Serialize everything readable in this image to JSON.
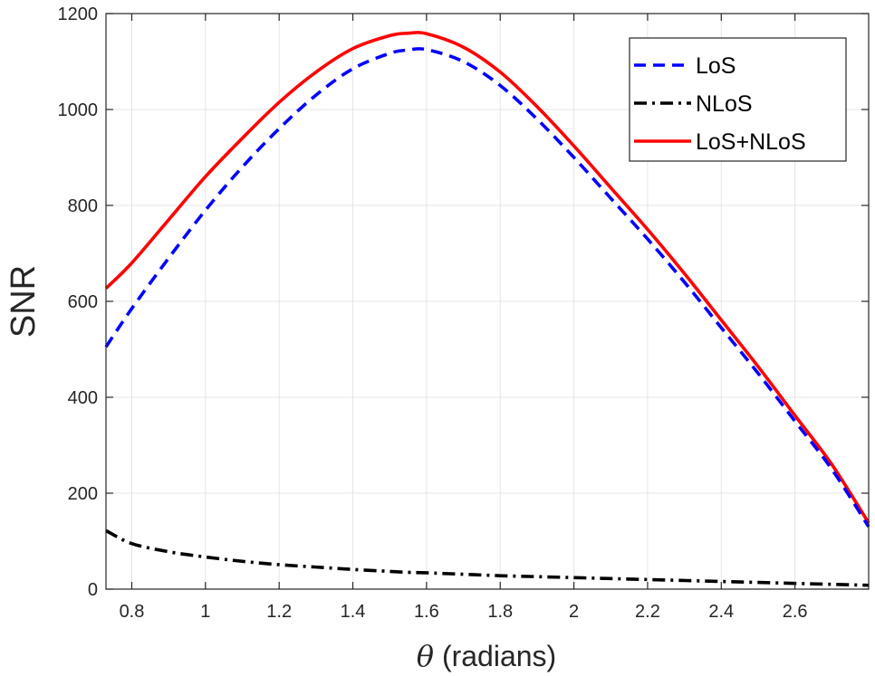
{
  "chart_data": {
    "type": "line",
    "title": "",
    "xlabel_symbol": "θ",
    "xlabel_text": " (radians)",
    "ylabel": "SNR",
    "xlim": [
      0.73,
      2.8
    ],
    "ylim": [
      0,
      1200
    ],
    "xticks": [
      0.8,
      1,
      1.2,
      1.4,
      1.6,
      1.8,
      2,
      2.2,
      2.4,
      2.6
    ],
    "xtick_labels": [
      "0.8",
      "1",
      "1.2",
      "1.4",
      "1.6",
      "1.8",
      "2",
      "2.2",
      "2.4",
      "2.6"
    ],
    "yticks": [
      0,
      200,
      400,
      600,
      800,
      1000,
      1200
    ],
    "ytick_labels": [
      "0",
      "200",
      "400",
      "600",
      "800",
      "1000",
      "1200"
    ],
    "grid": true,
    "legend_position": "top-right",
    "x": [
      0.73,
      0.8,
      0.9,
      1.0,
      1.1,
      1.2,
      1.3,
      1.4,
      1.5,
      1.55,
      1.6,
      1.7,
      1.8,
      1.9,
      2.0,
      2.1,
      2.2,
      2.3,
      2.4,
      2.5,
      2.6,
      2.7,
      2.8
    ],
    "series": [
      {
        "name": "LoS",
        "color": "#0000ff",
        "style": "dashed",
        "values": [
          505,
          585,
          690,
          790,
          880,
          960,
          1030,
          1085,
          1117,
          1124,
          1125,
          1100,
          1050,
          980,
          900,
          815,
          730,
          640,
          545,
          450,
          350,
          250,
          130
        ]
      },
      {
        "name": "NLoS",
        "color": "#000000",
        "style": "dashdot",
        "values": [
          122,
          95,
          78,
          67,
          58,
          51,
          46,
          41,
          37,
          35,
          34,
          31,
          28,
          26,
          24,
          22,
          20,
          18,
          16,
          14,
          12,
          10,
          8
        ]
      },
      {
        "name": "LoS+NLoS",
        "color": "#ff0000",
        "style": "solid",
        "values": [
          627,
          680,
          770,
          860,
          940,
          1015,
          1078,
          1127,
          1154,
          1159,
          1158,
          1130,
          1078,
          1006,
          924,
          837,
          750,
          658,
          561,
          464,
          362,
          260,
          138
        ]
      }
    ]
  }
}
